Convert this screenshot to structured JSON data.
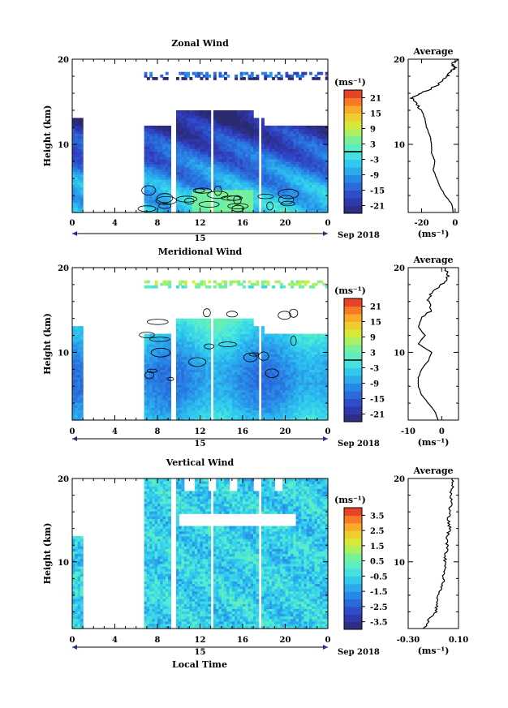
{
  "figure": {
    "date_label": "Sep 2018",
    "day_label": "15",
    "xlabel": "Local Time",
    "ylabel": "Height (km)",
    "avg_title": "Average",
    "unit": "(ms⁻¹)"
  },
  "chart_data": [
    {
      "type": "heatmap",
      "title": "Zonal Wind",
      "xlabel": "",
      "ylabel": "Height (km)",
      "x_ticks": [
        "0",
        "4",
        "8",
        "12",
        "16",
        "20",
        "0"
      ],
      "xlim": [
        0,
        24
      ],
      "y_ticks": [
        "10",
        "20"
      ],
      "ylim": [
        2,
        20
      ],
      "colorbar_unit": "(ms⁻¹)",
      "colorbar_ticks": [
        "21",
        "15",
        "9",
        "3",
        "-3",
        "-9",
        "-15",
        "-21"
      ],
      "colorbar_range": [
        -24,
        24
      ],
      "contour_level": 0,
      "gaps_hours": [
        [
          0.9,
          6.7
        ],
        [
          9.3,
          9.8
        ],
        [
          13.0,
          13.3
        ],
        [
          17.5,
          17.8
        ],
        [
          21.9,
          22.1
        ]
      ],
      "profile_levels_km": [
        2,
        4,
        6,
        8,
        10,
        11,
        12,
        14,
        15,
        16,
        17,
        18,
        19,
        20
      ],
      "value_range_ms": "-24 to 3",
      "average": {
        "title": "Average",
        "x_ticks": [
          "-20",
          "0"
        ],
        "xlim": [
          -28,
          2
        ],
        "xlabel": "(ms⁻¹)",
        "height_km": [
          2,
          3,
          4,
          5,
          6,
          7,
          8,
          9,
          10,
          11,
          12,
          13,
          14,
          15,
          15.5,
          16,
          17,
          18,
          18.5,
          19,
          19.5,
          20
        ],
        "values": [
          -1,
          -2,
          -6,
          -9,
          -11,
          -13,
          -12,
          -14,
          -14,
          -15,
          -17,
          -18,
          -20,
          -24,
          -26,
          -20,
          -10,
          -5,
          -3,
          0,
          -2,
          1
        ]
      }
    },
    {
      "type": "heatmap",
      "title": "Meridional Wind",
      "xlabel": "",
      "ylabel": "Height (km)",
      "x_ticks": [
        "0",
        "4",
        "8",
        "12",
        "16",
        "20",
        "0"
      ],
      "xlim": [
        0,
        24
      ],
      "y_ticks": [
        "10",
        "20"
      ],
      "ylim": [
        2,
        20
      ],
      "colorbar_unit": "(ms⁻¹)",
      "colorbar_ticks": [
        "21",
        "15",
        "9",
        "3",
        "-3",
        "-9",
        "-15",
        "-21"
      ],
      "colorbar_range": [
        -24,
        24
      ],
      "contour_level": 0,
      "gaps_hours": [
        [
          0.9,
          6.7
        ],
        [
          9.3,
          9.8
        ],
        [
          13.0,
          13.3
        ],
        [
          17.5,
          17.8
        ],
        [
          21.9,
          22.1
        ]
      ],
      "profile_levels_km": [
        2,
        4,
        6,
        8,
        10,
        11,
        12,
        14,
        15,
        16,
        17,
        18,
        19,
        20
      ],
      "value_range_ms": "-15 to 3",
      "average": {
        "title": "Average",
        "x_ticks": [
          "-10",
          "0"
        ],
        "xlim": [
          -10,
          5
        ],
        "xlabel": "(ms⁻¹)",
        "height_km": [
          2,
          3,
          4,
          5,
          6,
          7,
          8,
          9,
          10,
          11,
          12,
          13,
          14,
          15,
          16,
          17,
          18,
          19,
          20
        ],
        "values": [
          -1,
          -2,
          -4,
          -6,
          -7,
          -7,
          -6,
          -4,
          -3,
          -7,
          -5,
          -7,
          -6,
          -3,
          -4,
          -3,
          0,
          2,
          1
        ]
      }
    },
    {
      "type": "heatmap",
      "title": "Vertical Wind",
      "xlabel": "Local Time",
      "ylabel": "Height (km)",
      "x_ticks": [
        "0",
        "4",
        "8",
        "12",
        "16",
        "20",
        "0"
      ],
      "xlim": [
        0,
        24
      ],
      "y_ticks": [
        "10",
        "20"
      ],
      "ylim": [
        2,
        20
      ],
      "colorbar_unit": "(ms⁻¹)",
      "colorbar_ticks": [
        "3.5",
        "2.5",
        "1.5",
        "0.5",
        "-0.5",
        "-1.5",
        "-2.5",
        "-3.5"
      ],
      "colorbar_range": [
        -4,
        4
      ],
      "gaps_hours": [
        [
          0.9,
          6.7
        ],
        [
          9.3,
          9.8
        ],
        [
          13.0,
          13.3
        ],
        [
          17.5,
          17.8
        ],
        [
          21.9,
          22.1
        ]
      ],
      "value_range_ms": "-1.5 to 0.5",
      "average": {
        "title": "Average",
        "x_ticks": [
          "-0.30",
          "0.10"
        ],
        "xlim": [
          -0.3,
          0.1
        ],
        "xlabel": "(ms⁻¹)",
        "height_km": [
          2,
          3,
          4,
          5,
          6,
          7,
          8,
          9,
          10,
          11,
          12,
          13,
          14,
          15,
          16,
          17,
          18,
          19,
          20
        ],
        "values": [
          -0.17,
          -0.14,
          -0.08,
          -0.07,
          -0.06,
          -0.03,
          -0.02,
          -0.01,
          -0.01,
          0.0,
          0.01,
          0.01,
          0.03,
          0.02,
          0.03,
          0.04,
          0.04,
          0.05,
          0.05
        ]
      }
    }
  ]
}
